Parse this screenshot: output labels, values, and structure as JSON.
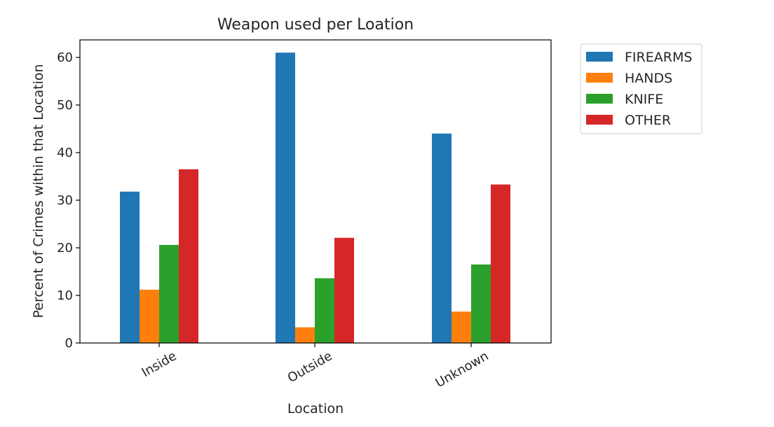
{
  "chart_data": {
    "type": "bar",
    "title": "Weapon used per Loation",
    "xlabel": "Location",
    "ylabel": "Percent of Crimes within that Location",
    "categories": [
      "Inside",
      "Outside",
      "Unknown"
    ],
    "ylim": [
      0,
      64
    ],
    "yticks": [
      0,
      10,
      20,
      30,
      40,
      50,
      60
    ],
    "grid": false,
    "legend_position": "outside-top-right",
    "series": [
      {
        "name": "FIREARMS",
        "color": "#1f77b4",
        "values": [
          31.8,
          61.0,
          44.0
        ]
      },
      {
        "name": "HANDS",
        "color": "#ff7f0e",
        "values": [
          11.2,
          3.3,
          6.6
        ]
      },
      {
        "name": "KNIFE",
        "color": "#2ca02c",
        "values": [
          20.6,
          13.6,
          16.5
        ]
      },
      {
        "name": "OTHER",
        "color": "#d62728",
        "values": [
          36.5,
          22.1,
          33.3
        ]
      }
    ]
  }
}
